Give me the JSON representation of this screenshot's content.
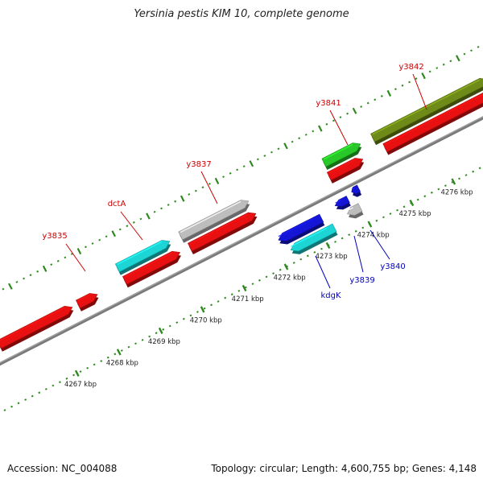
{
  "title": "Yersinia pestis KIM 10, complete genome",
  "accession": "Accession: NC_004088",
  "summary": "Topology: circular; Length: 4,600,755 bp; Genes: 4,148",
  "colors": {
    "red": "#e81010",
    "gray": "#bdbdbd",
    "cyan": "#1dd5d5",
    "blue": "#1515d8",
    "green": "#28c828",
    "olive": "#6e8a18",
    "tick": "#2e8a1e",
    "backbone": "#7a7a7a",
    "label_red": "#cc0000",
    "label_blue": "#0000bb"
  },
  "kbp_ticks": [
    {
      "kbp": 4267,
      "label": "4267 kbp"
    },
    {
      "kbp": 4268,
      "label": "4268 kbp"
    },
    {
      "kbp": 4269,
      "label": "4269 kbp"
    },
    {
      "kbp": 4270,
      "label": "4270 kbp"
    },
    {
      "kbp": 4271,
      "label": "4271 kbp"
    },
    {
      "kbp": 4272,
      "label": "4272 kbp"
    },
    {
      "kbp": 4273,
      "label": "4273 kbp"
    },
    {
      "kbp": 4274,
      "label": "4274 kbp"
    },
    {
      "kbp": 4275,
      "label": "4275 kbp"
    },
    {
      "kbp": 4276,
      "label": "4276 kbp"
    }
  ],
  "gene_labels": [
    {
      "name": "y3835",
      "strand": "plus"
    },
    {
      "name": "dctA",
      "strand": "plus"
    },
    {
      "name": "y3837",
      "strand": "plus"
    },
    {
      "name": "y3841",
      "strand": "plus"
    },
    {
      "name": "y3842",
      "strand": "plus"
    },
    {
      "name": "kdgK",
      "strand": "minus"
    },
    {
      "name": "y3839",
      "strand": "minus"
    },
    {
      "name": "y3840",
      "strand": "minus"
    }
  ]
}
